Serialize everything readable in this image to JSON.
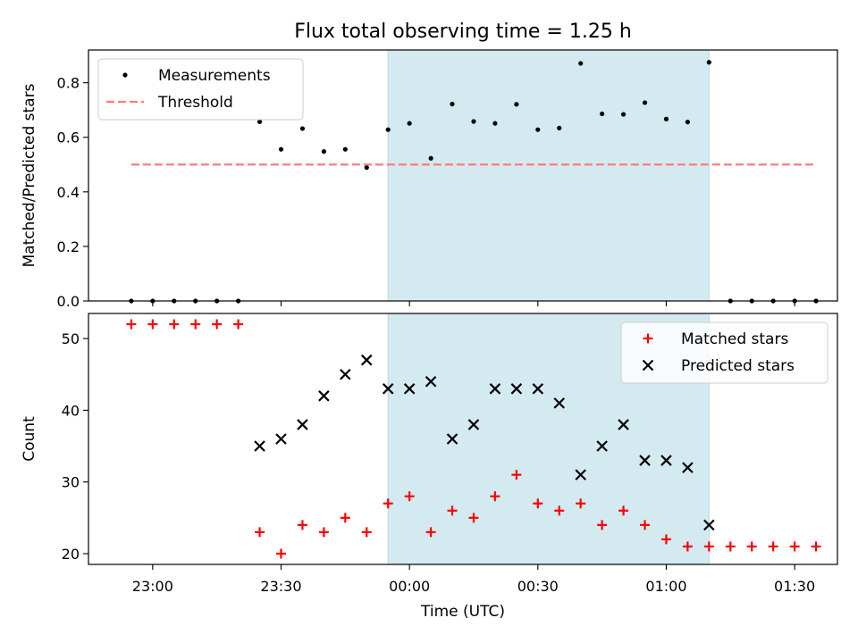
{
  "chart_data": {
    "type": "scatter",
    "title": "Flux total observing time = 1.25 h",
    "xlabel": "Time (UTC)",
    "x_tick_labels": [
      "23:00",
      "23:30",
      "00:00",
      "00:30",
      "01:00",
      "01:30"
    ],
    "x_tick_values": [
      "22:60",
      "23:30",
      "24:00",
      "24:30",
      "25:00",
      "25:30"
    ],
    "highlight_band": {
      "start": "23:55",
      "end": "25:10",
      "color": "#d4eaf1"
    },
    "panels": [
      {
        "name": "ratio",
        "ylabel": "Matched/Predicted stars",
        "ylim": [
          0,
          0.92
        ],
        "yticks": [
          "0.0",
          "0.2",
          "0.4",
          "0.6",
          "0.8"
        ],
        "ytick_values": [
          0,
          0.2,
          0.4,
          0.6,
          0.8
        ],
        "legend_position": "top-left",
        "series": [
          {
            "name": "Measurements",
            "marker": "dot",
            "color": "#000000",
            "points": [
              [
                "22:55",
                0
              ],
              [
                "23:00",
                0
              ],
              [
                "23:05",
                0
              ],
              [
                "23:10",
                0
              ],
              [
                "23:15",
                0
              ],
              [
                "23:20",
                0
              ],
              [
                "23:25",
                0.657
              ],
              [
                "23:30",
                0.556
              ],
              [
                "23:35",
                0.632
              ],
              [
                "23:40",
                0.548
              ],
              [
                "23:45",
                0.556
              ],
              [
                "23:50",
                0.489
              ],
              [
                "23:55",
                0.628
              ],
              [
                "24:00",
                0.651
              ],
              [
                "24:05",
                0.523
              ],
              [
                "24:10",
                0.722
              ],
              [
                "24:15",
                0.658
              ],
              [
                "24:20",
                0.651
              ],
              [
                "24:25",
                0.721
              ],
              [
                "24:30",
                0.628
              ],
              [
                "24:35",
                0.634
              ],
              [
                "24:40",
                0.871
              ],
              [
                "24:45",
                0.686
              ],
              [
                "24:50",
                0.684
              ],
              [
                "24:55",
                0.727
              ],
              [
                "25:00",
                0.667
              ],
              [
                "25:05",
                0.656
              ],
              [
                "25:10",
                0.875
              ],
              [
                "25:15",
                0
              ],
              [
                "25:20",
                0
              ],
              [
                "25:25",
                0
              ],
              [
                "25:30",
                0
              ],
              [
                "25:35",
                0
              ]
            ]
          },
          {
            "name": "Threshold",
            "marker": "dashed-line",
            "color": "#ff7b7b",
            "points": [
              [
                "22:55",
                0.5
              ],
              [
                "25:35",
                0.5
              ]
            ]
          }
        ]
      },
      {
        "name": "counts",
        "ylabel": "Count",
        "ylim": [
          18.5,
          53.5
        ],
        "yticks": [
          "20",
          "30",
          "40",
          "50"
        ],
        "ytick_values": [
          20,
          30,
          40,
          50
        ],
        "legend_position": "top-right",
        "series": [
          {
            "name": "Matched stars",
            "marker": "plus",
            "color": "#ff0000",
            "points": [
              [
                "22:55",
                52
              ],
              [
                "23:00",
                52
              ],
              [
                "23:05",
                52
              ],
              [
                "23:10",
                52
              ],
              [
                "23:15",
                52
              ],
              [
                "23:20",
                52
              ],
              [
                "23:25",
                23
              ],
              [
                "23:30",
                20
              ],
              [
                "23:35",
                24
              ],
              [
                "23:40",
                23
              ],
              [
                "23:45",
                25
              ],
              [
                "23:50",
                23
              ],
              [
                "23:55",
                27
              ],
              [
                "24:00",
                28
              ],
              [
                "24:05",
                23
              ],
              [
                "24:10",
                26
              ],
              [
                "24:15",
                25
              ],
              [
                "24:20",
                28
              ],
              [
                "24:25",
                31
              ],
              [
                "24:30",
                27
              ],
              [
                "24:35",
                26
              ],
              [
                "24:40",
                27
              ],
              [
                "24:45",
                24
              ],
              [
                "24:50",
                26
              ],
              [
                "24:55",
                24
              ],
              [
                "25:00",
                22
              ],
              [
                "25:05",
                21
              ],
              [
                "25:10",
                21
              ],
              [
                "25:15",
                21
              ],
              [
                "25:20",
                21
              ],
              [
                "25:25",
                21
              ],
              [
                "25:30",
                21
              ],
              [
                "25:35",
                21
              ]
            ]
          },
          {
            "name": "Predicted stars",
            "marker": "x",
            "color": "#000000",
            "points": [
              [
                "23:25",
                35
              ],
              [
                "23:30",
                36
              ],
              [
                "23:35",
                38
              ],
              [
                "23:40",
                42
              ],
              [
                "23:45",
                45
              ],
              [
                "23:50",
                47
              ],
              [
                "23:55",
                43
              ],
              [
                "24:00",
                43
              ],
              [
                "24:05",
                44
              ],
              [
                "24:10",
                36
              ],
              [
                "24:15",
                38
              ],
              [
                "24:20",
                43
              ],
              [
                "24:25",
                43
              ],
              [
                "24:30",
                43
              ],
              [
                "24:35",
                41
              ],
              [
                "24:40",
                31
              ],
              [
                "24:45",
                35
              ],
              [
                "24:50",
                38
              ],
              [
                "24:55",
                33
              ],
              [
                "25:00",
                33
              ],
              [
                "25:05",
                32
              ],
              [
                "25:10",
                24
              ]
            ]
          }
        ]
      }
    ]
  }
}
